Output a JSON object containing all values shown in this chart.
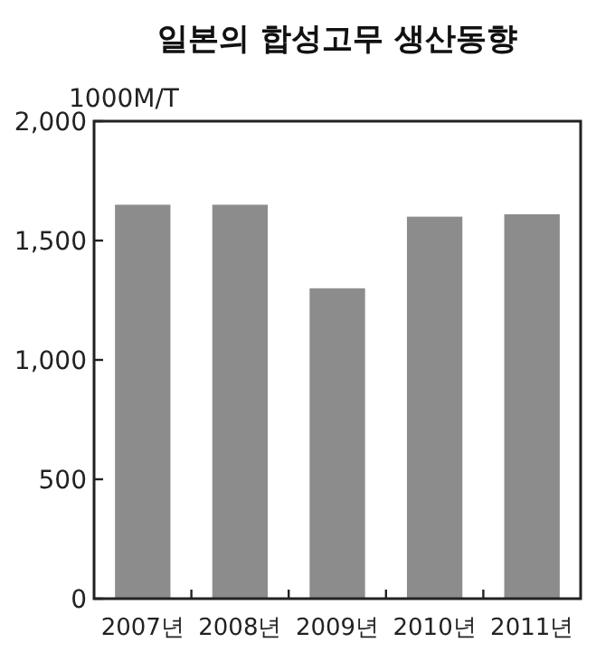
{
  "chart_data": {
    "type": "bar",
    "title": "일본의 합성고무 생산동향",
    "ylabel": "1000M/T",
    "categories": [
      "2007년",
      "2008년",
      "2009년",
      "2010년",
      "2011년"
    ],
    "values": [
      1650,
      1650,
      1300,
      1600,
      1610
    ],
    "color": "#8c8c8c",
    "ylim": [
      0,
      2000
    ],
    "yticks": [
      0,
      500,
      {
        "value": 1000,
        "label": "1,000"
      },
      {
        "value": 1500,
        "label": "1,500"
      },
      {
        "value": 2000,
        "label": "2,000"
      }
    ],
    "grid": false
  }
}
